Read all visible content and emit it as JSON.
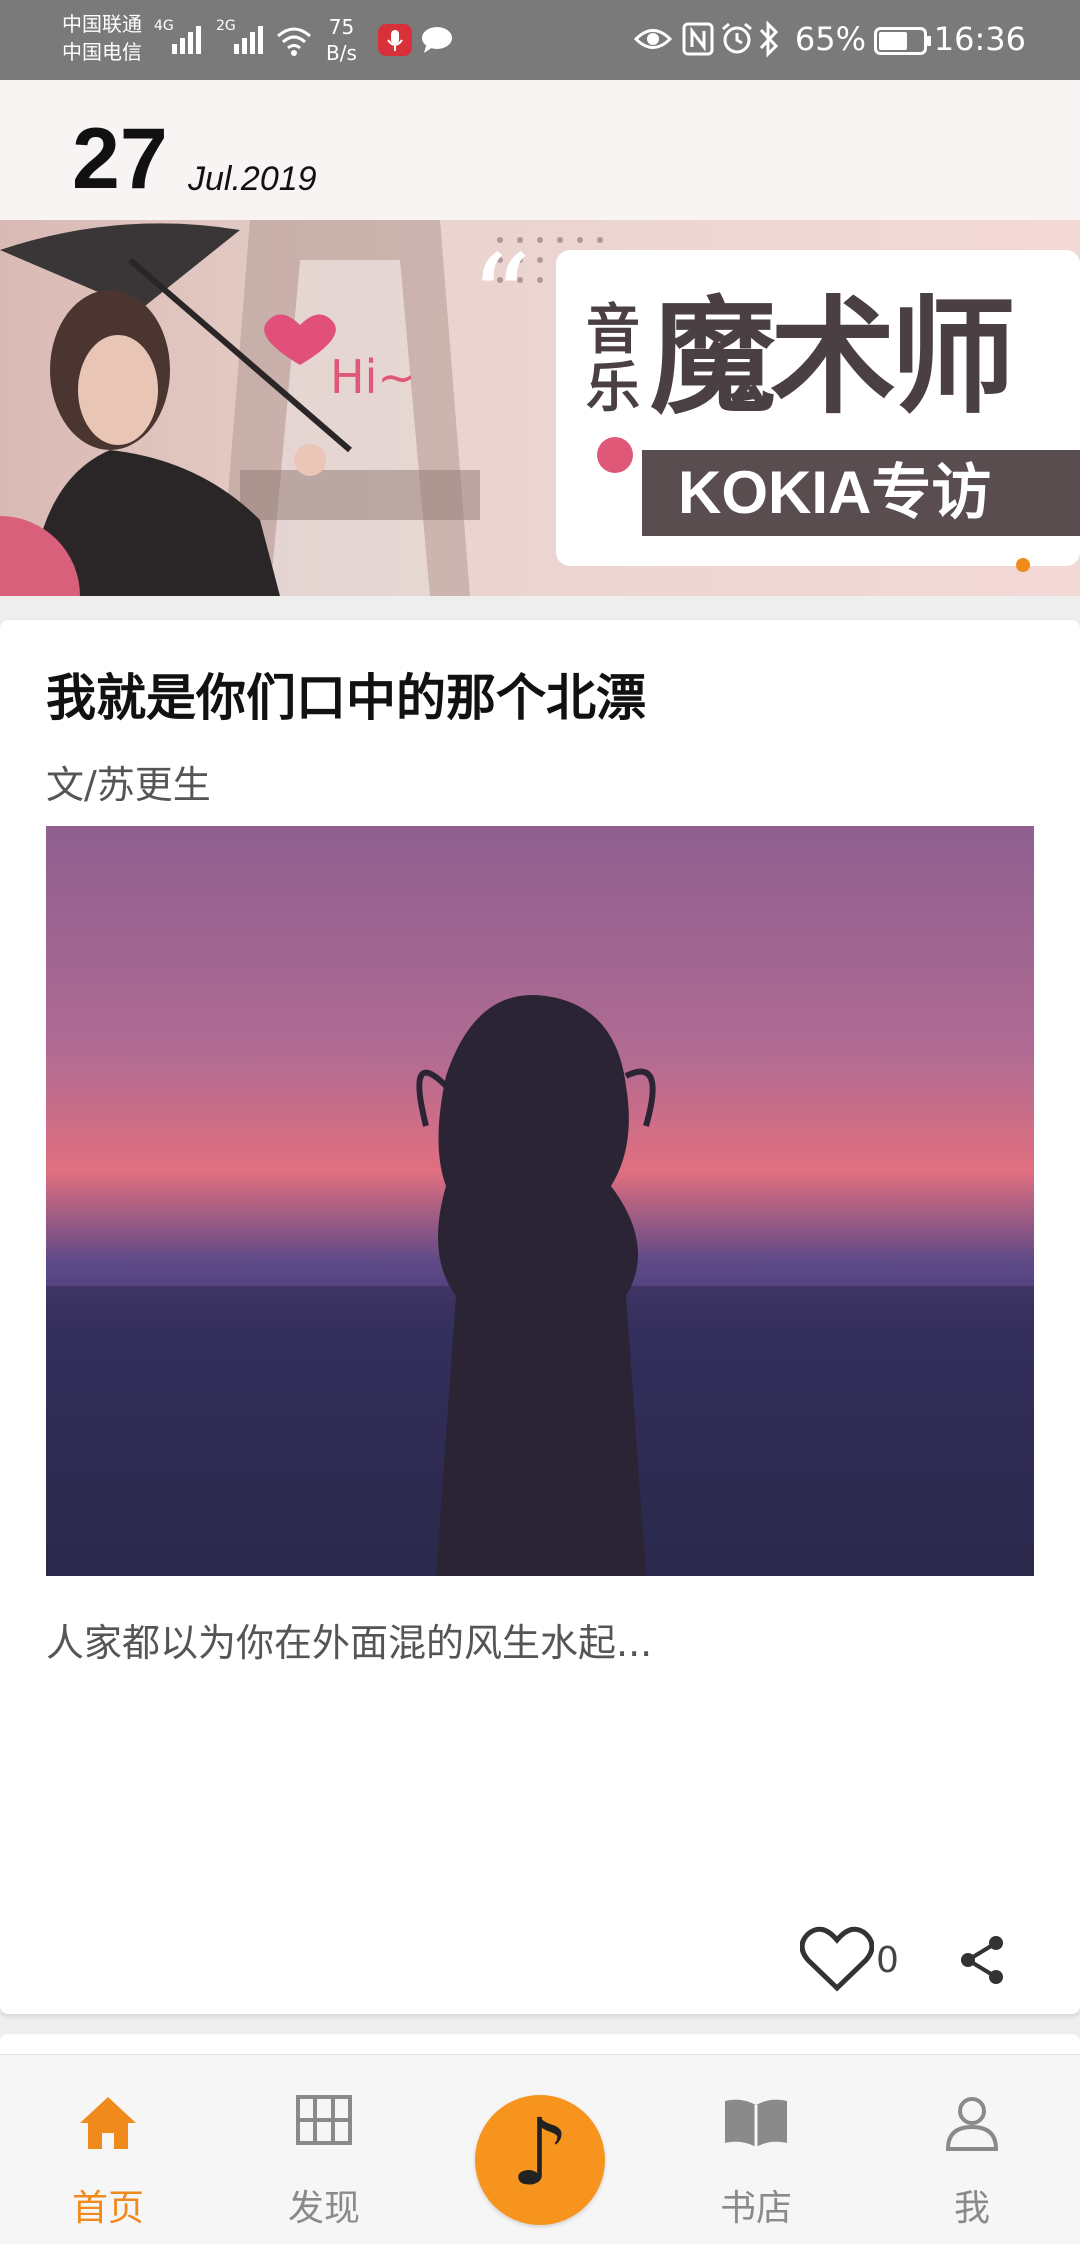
{
  "status_bar": {
    "carrier_1": "中国联通",
    "carrier_2": "中国电信",
    "sim1_network": "4G",
    "sim2_network": "2G",
    "net_speed_value": "75",
    "net_speed_unit": "B/s",
    "battery_percent": "65%",
    "battery_level": 0.65,
    "time": "16:36"
  },
  "header": {
    "day": "27",
    "month_year": "Jul.2019"
  },
  "banner": {
    "title_small": "音乐",
    "title_big": "魔术师",
    "subtitle": "KOKIA专访",
    "greeting": "Hi~",
    "active_page": 1
  },
  "article": {
    "title": "我就是你们口中的那个北漂",
    "author": "文/苏更生",
    "excerpt": "人家都以为你在外面混的风生水起...",
    "like_count": "0"
  },
  "nav": {
    "items": [
      {
        "label": "首页",
        "icon": "home-icon",
        "active": true
      },
      {
        "label": "发现",
        "icon": "grid-icon",
        "active": false
      },
      {
        "label": "",
        "icon": "music-note-icon",
        "active": false
      },
      {
        "label": "书店",
        "icon": "book-icon",
        "active": false
      },
      {
        "label": "我",
        "icon": "person-icon",
        "active": false
      }
    ],
    "center_glyph": "♪"
  },
  "colors": {
    "accent": "#f08a1c",
    "play_button": "#f7941d",
    "status_bar": "#7a7a7a"
  }
}
